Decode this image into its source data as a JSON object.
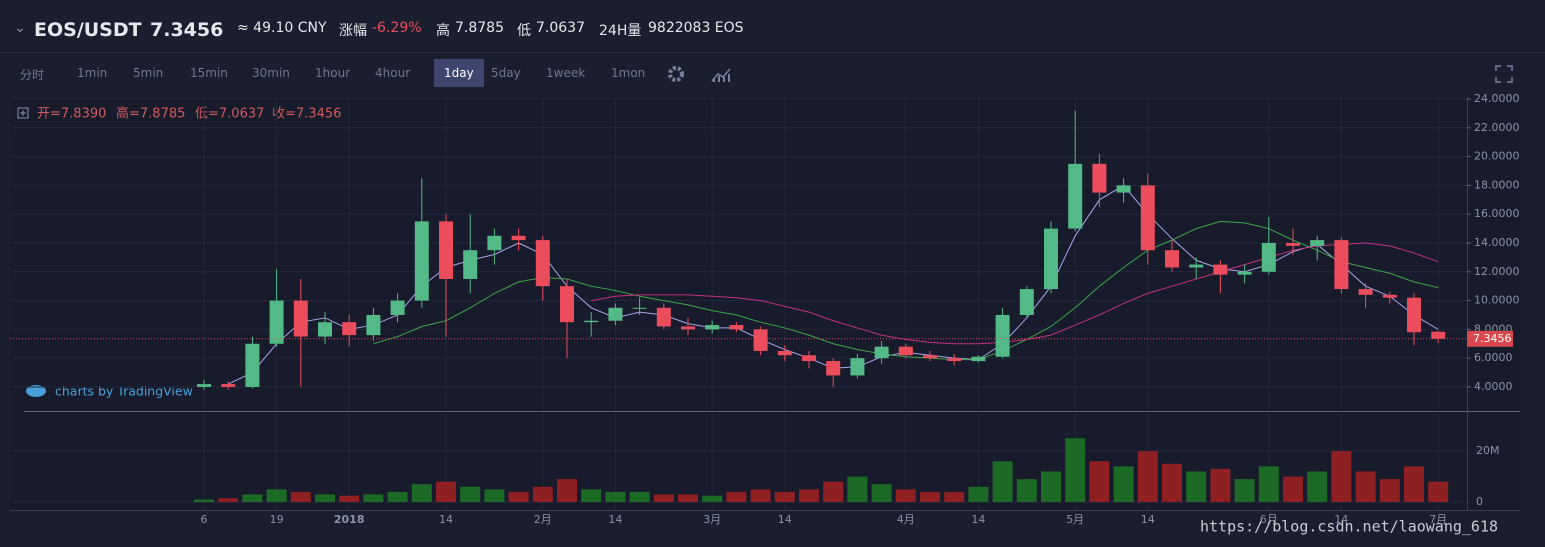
{
  "header": {
    "symbol": "EOS/USDT",
    "price": "7.3456",
    "cny": "≈ 49.10 CNY",
    "change_label": "涨幅",
    "change": "-6.29%",
    "high_label": "高",
    "high": "7.8785",
    "low_label": "低",
    "low": "7.0637",
    "vol_label": "24H量",
    "vol": "9822083 EOS"
  },
  "toolbar": {
    "intervals": [
      "分时",
      "1min",
      "5min",
      "15min",
      "30min",
      "1hour",
      "4hour",
      "1day",
      "5day",
      "1week",
      "1mon"
    ],
    "active": 7
  },
  "chart_data": {
    "type": "candlestick",
    "ohlc_legend": [
      "开=7.8390",
      "高=7.8785",
      "低=7.0637",
      "收=7.3456"
    ],
    "branding": "charts by TradingView",
    "watermark": "https://blog.csdn.net/laowang_618",
    "last_price": 7.3456,
    "last_price_label": "7.3456",
    "up_color": "#53b987",
    "down_color": "#eb4d5c",
    "vol_up_color": "#1d6a27",
    "vol_down_color": "#8e1f22",
    "categories": [
      "6",
      null,
      null,
      "19",
      null,
      null,
      "2018",
      null,
      null,
      null,
      "14",
      null,
      null,
      null,
      "2月",
      null,
      null,
      "14",
      null,
      null,
      null,
      "3月",
      null,
      null,
      "14",
      null,
      null,
      null,
      null,
      "4月",
      null,
      null,
      "14",
      null,
      null,
      null,
      "5月",
      null,
      null,
      "14",
      null,
      null,
      null,
      null,
      "6月",
      null,
      null,
      "14",
      null,
      null,
      null,
      "7月"
    ],
    "open": [
      4.0,
      4.2,
      4.0,
      7.0,
      10.0,
      7.5,
      8.5,
      7.6,
      9.0,
      10.0,
      15.5,
      11.5,
      13.5,
      14.5,
      14.2,
      11.0,
      8.5,
      8.6,
      9.5,
      9.5,
      8.2,
      8.0,
      8.3,
      8.0,
      6.5,
      6.2,
      5.8,
      4.8,
      6.0,
      6.8,
      6.2,
      6.0,
      5.8,
      6.1,
      9.0,
      10.8,
      15.0,
      19.5,
      17.5,
      18.0,
      13.5,
      12.3,
      12.5,
      11.8,
      12.0,
      14.0,
      13.8,
      14.2,
      10.8,
      10.4,
      10.2,
      7.839
    ],
    "high": [
      4.5,
      4.4,
      7.5,
      12.2,
      11.5,
      9.2,
      9.0,
      9.5,
      10.5,
      18.5,
      16.0,
      16.0,
      15.0,
      15.0,
      14.5,
      11.5,
      9.2,
      9.8,
      10.2,
      9.8,
      8.8,
      8.6,
      8.5,
      8.2,
      6.9,
      6.5,
      6.0,
      6.3,
      7.2,
      7.0,
      6.5,
      6.3,
      6.2,
      9.5,
      11.0,
      15.5,
      23.2,
      20.2,
      18.5,
      18.8,
      14.2,
      13.0,
      12.8,
      12.5,
      15.8,
      15.0,
      14.5,
      14.4,
      11.2,
      10.6,
      10.5,
      7.8785
    ],
    "low": [
      3.8,
      3.8,
      3.9,
      6.8,
      4.0,
      7.0,
      6.8,
      7.2,
      8.5,
      9.5,
      7.5,
      10.5,
      12.5,
      13.5,
      10.0,
      6.0,
      7.5,
      8.3,
      9.0,
      8.0,
      7.6,
      7.7,
      7.8,
      6.2,
      5.8,
      5.3,
      4.0,
      4.6,
      5.6,
      6.0,
      5.8,
      5.5,
      5.7,
      6.0,
      8.8,
      10.5,
      14.8,
      16.5,
      16.8,
      12.5,
      12.0,
      11.5,
      10.5,
      11.2,
      11.8,
      13.2,
      12.8,
      10.5,
      9.5,
      9.8,
      6.9,
      7.0637
    ],
    "close": [
      4.2,
      4.0,
      7.0,
      10.0,
      7.5,
      8.5,
      7.6,
      9.0,
      10.0,
      15.5,
      11.5,
      13.5,
      14.5,
      14.2,
      11.0,
      8.5,
      8.6,
      9.5,
      9.5,
      8.2,
      8.0,
      8.3,
      8.0,
      6.5,
      6.2,
      5.8,
      4.8,
      6.0,
      6.8,
      6.2,
      6.0,
      5.8,
      6.1,
      9.0,
      10.8,
      15.0,
      19.5,
      17.5,
      18.0,
      13.5,
      12.3,
      12.5,
      11.8,
      12.0,
      14.0,
      13.8,
      14.2,
      10.8,
      10.4,
      10.2,
      7.8,
      7.3456
    ],
    "volume": [
      1000000,
      1500000,
      3000000,
      5000000,
      4000000,
      3000000,
      2500000,
      3000000,
      4000000,
      7000000,
      8000000,
      6000000,
      5000000,
      4000000,
      6000000,
      9000000,
      5000000,
      4000000,
      4000000,
      3000000,
      3000000,
      2500000,
      4000000,
      5000000,
      4000000,
      5000000,
      8000000,
      10000000,
      7000000,
      5000000,
      4000000,
      4000000,
      6000000,
      16000000,
      9000000,
      12000000,
      25000000,
      16000000,
      14000000,
      20000000,
      15000000,
      12000000,
      13000000,
      9000000,
      14000000,
      10000000,
      12000000,
      20000000,
      12000000,
      9000000,
      14000000,
      8000000
    ],
    "lines": [
      {
        "color": "#a9a6e6",
        "values": [
          null,
          4.2,
          5.0,
          7.0,
          8.5,
          8.8,
          8.0,
          8.3,
          9.0,
          11.0,
          12.3,
          12.8,
          13.2,
          14.0,
          13.2,
          11.0,
          9.5,
          8.8,
          9.2,
          9.0,
          8.4,
          8.1,
          8.1,
          7.3,
          6.6,
          6.0,
          5.3,
          5.4,
          6.1,
          6.4,
          6.2,
          6.0,
          5.9,
          7.0,
          8.8,
          11.0,
          14.5,
          17.0,
          18.0,
          16.0,
          14.3,
          12.8,
          12.2,
          12.0,
          12.5,
          13.4,
          13.9,
          12.5,
          11.0,
          10.3,
          9.0,
          8.0
        ]
      },
      {
        "color": "#3fa34d",
        "values": [
          null,
          null,
          null,
          null,
          null,
          null,
          null,
          7.0,
          7.5,
          8.2,
          8.6,
          9.5,
          10.5,
          11.3,
          11.6,
          11.5,
          11.0,
          10.7,
          10.3,
          10.0,
          9.7,
          9.3,
          9.0,
          8.5,
          8.1,
          7.6,
          7.0,
          6.6,
          6.3,
          6.1,
          6.0,
          5.9,
          5.9,
          6.5,
          7.3,
          8.2,
          9.5,
          11.0,
          12.3,
          13.5,
          14.2,
          15.0,
          15.5,
          15.4,
          15.0,
          14.2,
          13.5,
          12.7,
          12.3,
          11.9,
          11.3,
          10.9
        ]
      },
      {
        "color": "#c2327f",
        "values": [
          null,
          null,
          null,
          null,
          null,
          null,
          null,
          null,
          null,
          null,
          null,
          null,
          null,
          null,
          null,
          null,
          10.0,
          10.3,
          10.4,
          10.4,
          10.4,
          10.3,
          10.2,
          10.0,
          9.6,
          9.2,
          8.6,
          8.1,
          7.6,
          7.3,
          7.1,
          7.0,
          7.0,
          7.1,
          7.3,
          7.6,
          8.3,
          9.0,
          9.8,
          10.5,
          11.0,
          11.5,
          12.0,
          12.5,
          13.0,
          13.5,
          13.8,
          13.9,
          14.0,
          13.8,
          13.3,
          12.7
        ]
      }
    ],
    "ylim": [
      2.4,
      24.14
    ],
    "yticks": [
      {
        "value": 4,
        "label": "4.0000"
      },
      {
        "value": 6,
        "label": "6.0000"
      },
      {
        "value": 8,
        "label": "8.0000"
      },
      {
        "value": 10,
        "label": "10.0000"
      },
      {
        "value": 12,
        "label": "12.0000"
      },
      {
        "value": 14,
        "label": "14.0000"
      },
      {
        "value": 16,
        "label": "16.0000"
      },
      {
        "value": 18,
        "label": "18.0000"
      },
      {
        "value": 20,
        "label": "20.0000"
      },
      {
        "value": 22,
        "label": "22.0000"
      },
      {
        "value": 24,
        "label": "24.0000"
      }
    ],
    "vol_ylim": [
      -3100000,
      34900000
    ],
    "vol_ticks": [
      0,
      {
        "value": 20000000,
        "label": "20M"
      }
    ],
    "grid": true
  }
}
